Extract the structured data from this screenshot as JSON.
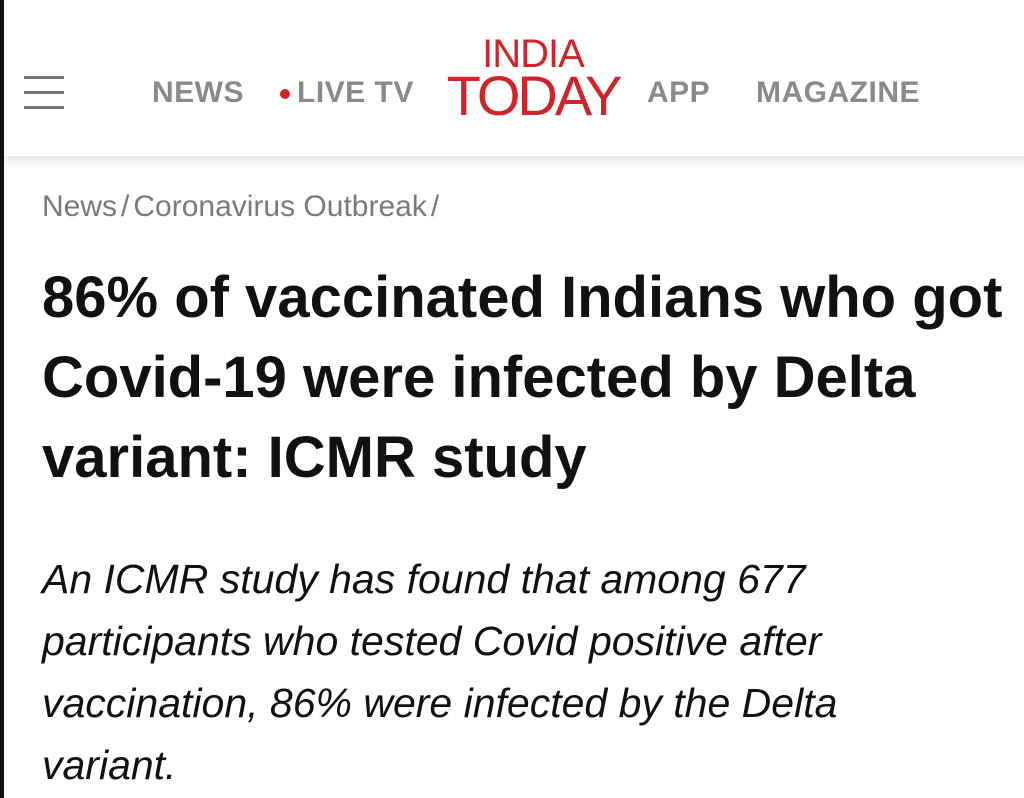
{
  "header": {
    "nav": [
      "NEWS",
      "LIVE TV"
    ],
    "logo": {
      "line1": "INDIA",
      "line2": "TODAY"
    },
    "nav_right": [
      "APP",
      "MAGAZINE"
    ]
  },
  "breadcrumb": {
    "items": [
      "News",
      "Coronavirus Outbreak"
    ],
    "separator": "/"
  },
  "article": {
    "headline": "86% of vaccinated Indians who got Covid-19 were infected by Delta variant: ICMR study",
    "summary": "An ICMR study has found that among 677 participants who tested Covid positive after vaccination, 86% were infected by the Delta variant."
  }
}
